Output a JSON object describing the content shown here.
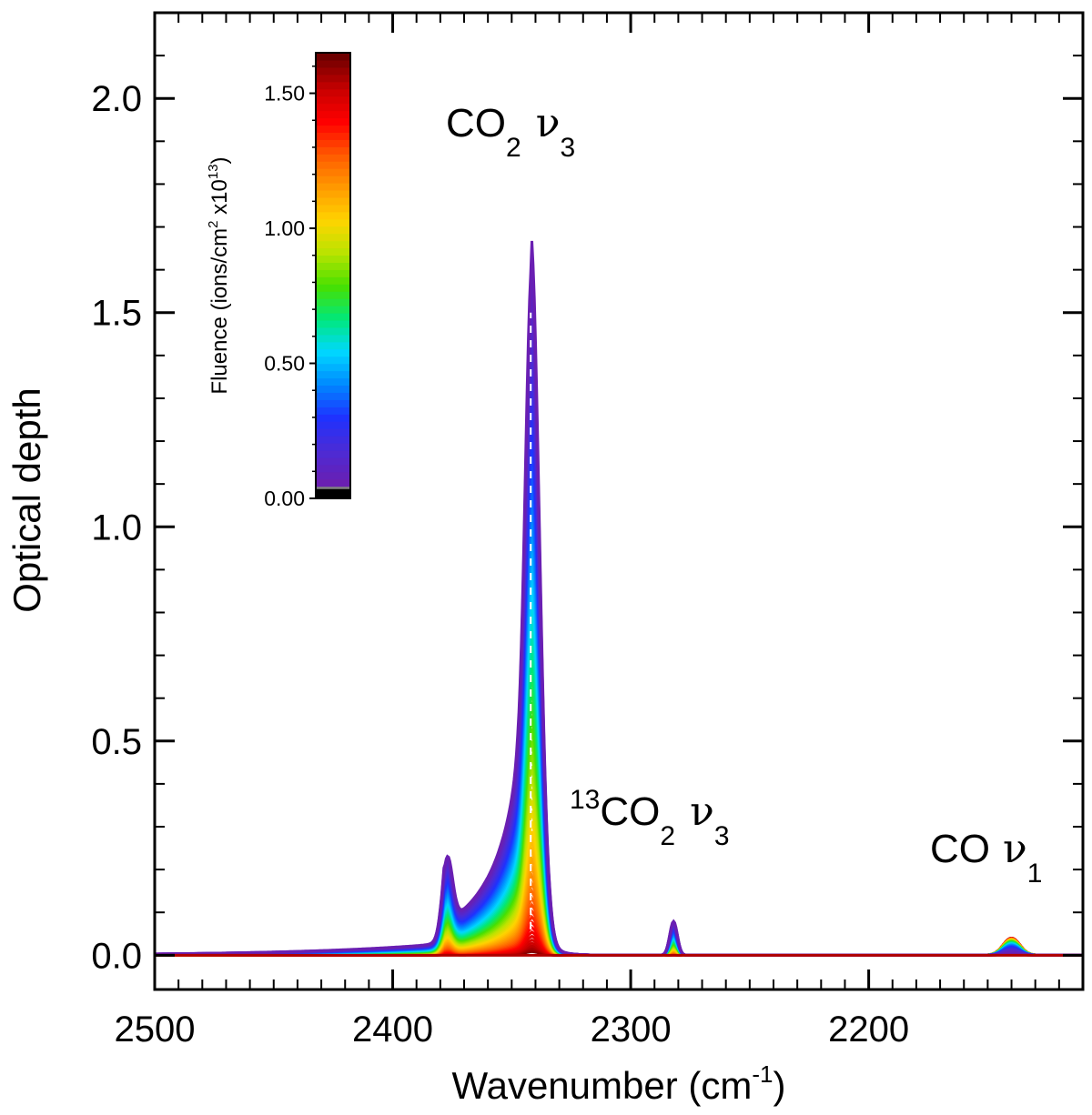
{
  "chart_data": {
    "type": "line",
    "title": "",
    "xlabel": "Wavenumber (cm",
    "xlabel_sup": "-1",
    "xlabel_close": ")",
    "ylabel": "Optical depth",
    "xlim": [
      2500,
      2110
    ],
    "ylim": [
      -0.08,
      2.2
    ],
    "x_reversed": true,
    "x_ticks": [
      2500,
      2400,
      2300,
      2200
    ],
    "x_tick_labels": [
      "2500",
      "2400",
      "2300",
      "2200"
    ],
    "y_ticks": [
      0.0,
      0.5,
      1.0,
      1.5,
      2.0
    ],
    "y_tick_labels": [
      "0.0",
      "0.5",
      "1.0",
      "1.5",
      "2.0"
    ],
    "peaks": {
      "co2_main": {
        "center": 2342,
        "height": 1.71
      },
      "co2_shoulder": {
        "center": 2377,
        "height": 0.27
      },
      "co2_13": {
        "center": 2282,
        "height": 0.08
      },
      "co": {
        "center": 2140,
        "height": 0.04
      }
    },
    "series_count": 60,
    "fluence_range": [
      0.0,
      1.6
    ],
    "unirradiated_peak": 1.71,
    "final_peak": 0.02,
    "annotations": [
      {
        "text": "CO",
        "sub": "2",
        "greek": "ν",
        "greek_sub": "3",
        "x": 2342,
        "y": 1.95
      },
      {
        "pre_sup": "13",
        "text": "CO",
        "sub": "2",
        "greek": "ν",
        "greek_sub": "3",
        "x": 2272,
        "y": 0.3
      },
      {
        "text": "CO",
        "greek": "ν",
        "greek_sub": "1",
        "x": 2153,
        "y": 0.18
      }
    ],
    "colorbar": {
      "title_main": "Fluence (ions/cm",
      "title_sup1": "2",
      "title_mid": " x10",
      "title_sup2": "13",
      "title_close": ")",
      "ticks": [
        "0.00",
        "0.50",
        "1.00",
        "1.50"
      ],
      "tick_values": [
        0.0,
        0.5,
        1.0,
        1.5
      ],
      "range": [
        0.0,
        1.65
      ],
      "colors": [
        "#000000",
        "#808080",
        "#6a1fb2",
        "#4b2bd6",
        "#1e32ff",
        "#0088ff",
        "#00d8ff",
        "#00e87a",
        "#48e000",
        "#b8e400",
        "#ffd400",
        "#ff9a00",
        "#ff5a00",
        "#ff0000",
        "#c80000",
        "#6e0000"
      ]
    }
  }
}
